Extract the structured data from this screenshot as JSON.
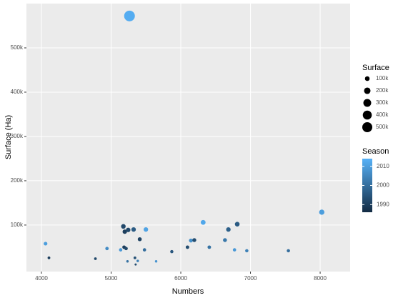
{
  "chart_data": {
    "type": "scatter",
    "x_label": "Numbers",
    "y_label": "Surface (Ha)",
    "x": [
      5264,
      4059,
      4108,
      4775,
      4941,
      5137,
      5176,
      5196,
      5245,
      5186,
      5215,
      5235,
      5323,
      5342,
      5352,
      5382,
      5411,
      5479,
      5499,
      5646,
      5871,
      6096,
      6145,
      6194,
      6321,
      6409,
      6634,
      6683,
      6810,
      6771,
      6947,
      7544,
      8023
    ],
    "values": [
      572000,
      58000,
      26000,
      24000,
      47000,
      44000,
      97000,
      85000,
      89000,
      50000,
      47000,
      18000,
      90000,
      26000,
      11000,
      19000,
      68000,
      44000,
      90000,
      18000,
      40000,
      50000,
      65000,
      66000,
      106000,
      50000,
      66000,
      90000,
      102000,
      44000,
      42000,
      42000,
      129000
    ],
    "seasons": [
      2013,
      2010,
      1990,
      1992,
      2006,
      2009,
      1992,
      1990,
      1992,
      1990,
      1992,
      2001,
      1996,
      1994,
      1993,
      2004,
      1991,
      2000,
      2011,
      2008,
      1995,
      1993,
      2007,
      1993,
      2012,
      2001,
      2002,
      1997,
      1996,
      2009,
      2004,
      2000,
      2010
    ],
    "xlim": [
      3785,
      8430
    ],
    "xticks": [
      4000,
      5000,
      6000,
      7000,
      8000
    ],
    "ylim": [
      -5000,
      600000
    ],
    "yticks": [
      {
        "value": 100000,
        "label": "100k"
      },
      {
        "value": 200000,
        "label": "200k"
      },
      {
        "value": 300000,
        "label": "300k"
      },
      {
        "value": 400000,
        "label": "400k"
      },
      {
        "value": 500000,
        "label": "500k"
      }
    ],
    "grid": true,
    "size_legend": {
      "title": "Surface",
      "breaks": [
        {
          "value": 100000,
          "label": "100k"
        },
        {
          "value": 200000,
          "label": "200k"
        },
        {
          "value": 300000,
          "label": "300k"
        },
        {
          "value": 400000,
          "label": "400k"
        },
        {
          "value": 500000,
          "label": "500k"
        }
      ]
    },
    "color_legend": {
      "title": "Season",
      "low_color": "#132B43",
      "high_color": "#56B1F7",
      "lim": [
        1986,
        2014
      ],
      "ticks": [
        1990,
        2000,
        2010
      ]
    }
  }
}
